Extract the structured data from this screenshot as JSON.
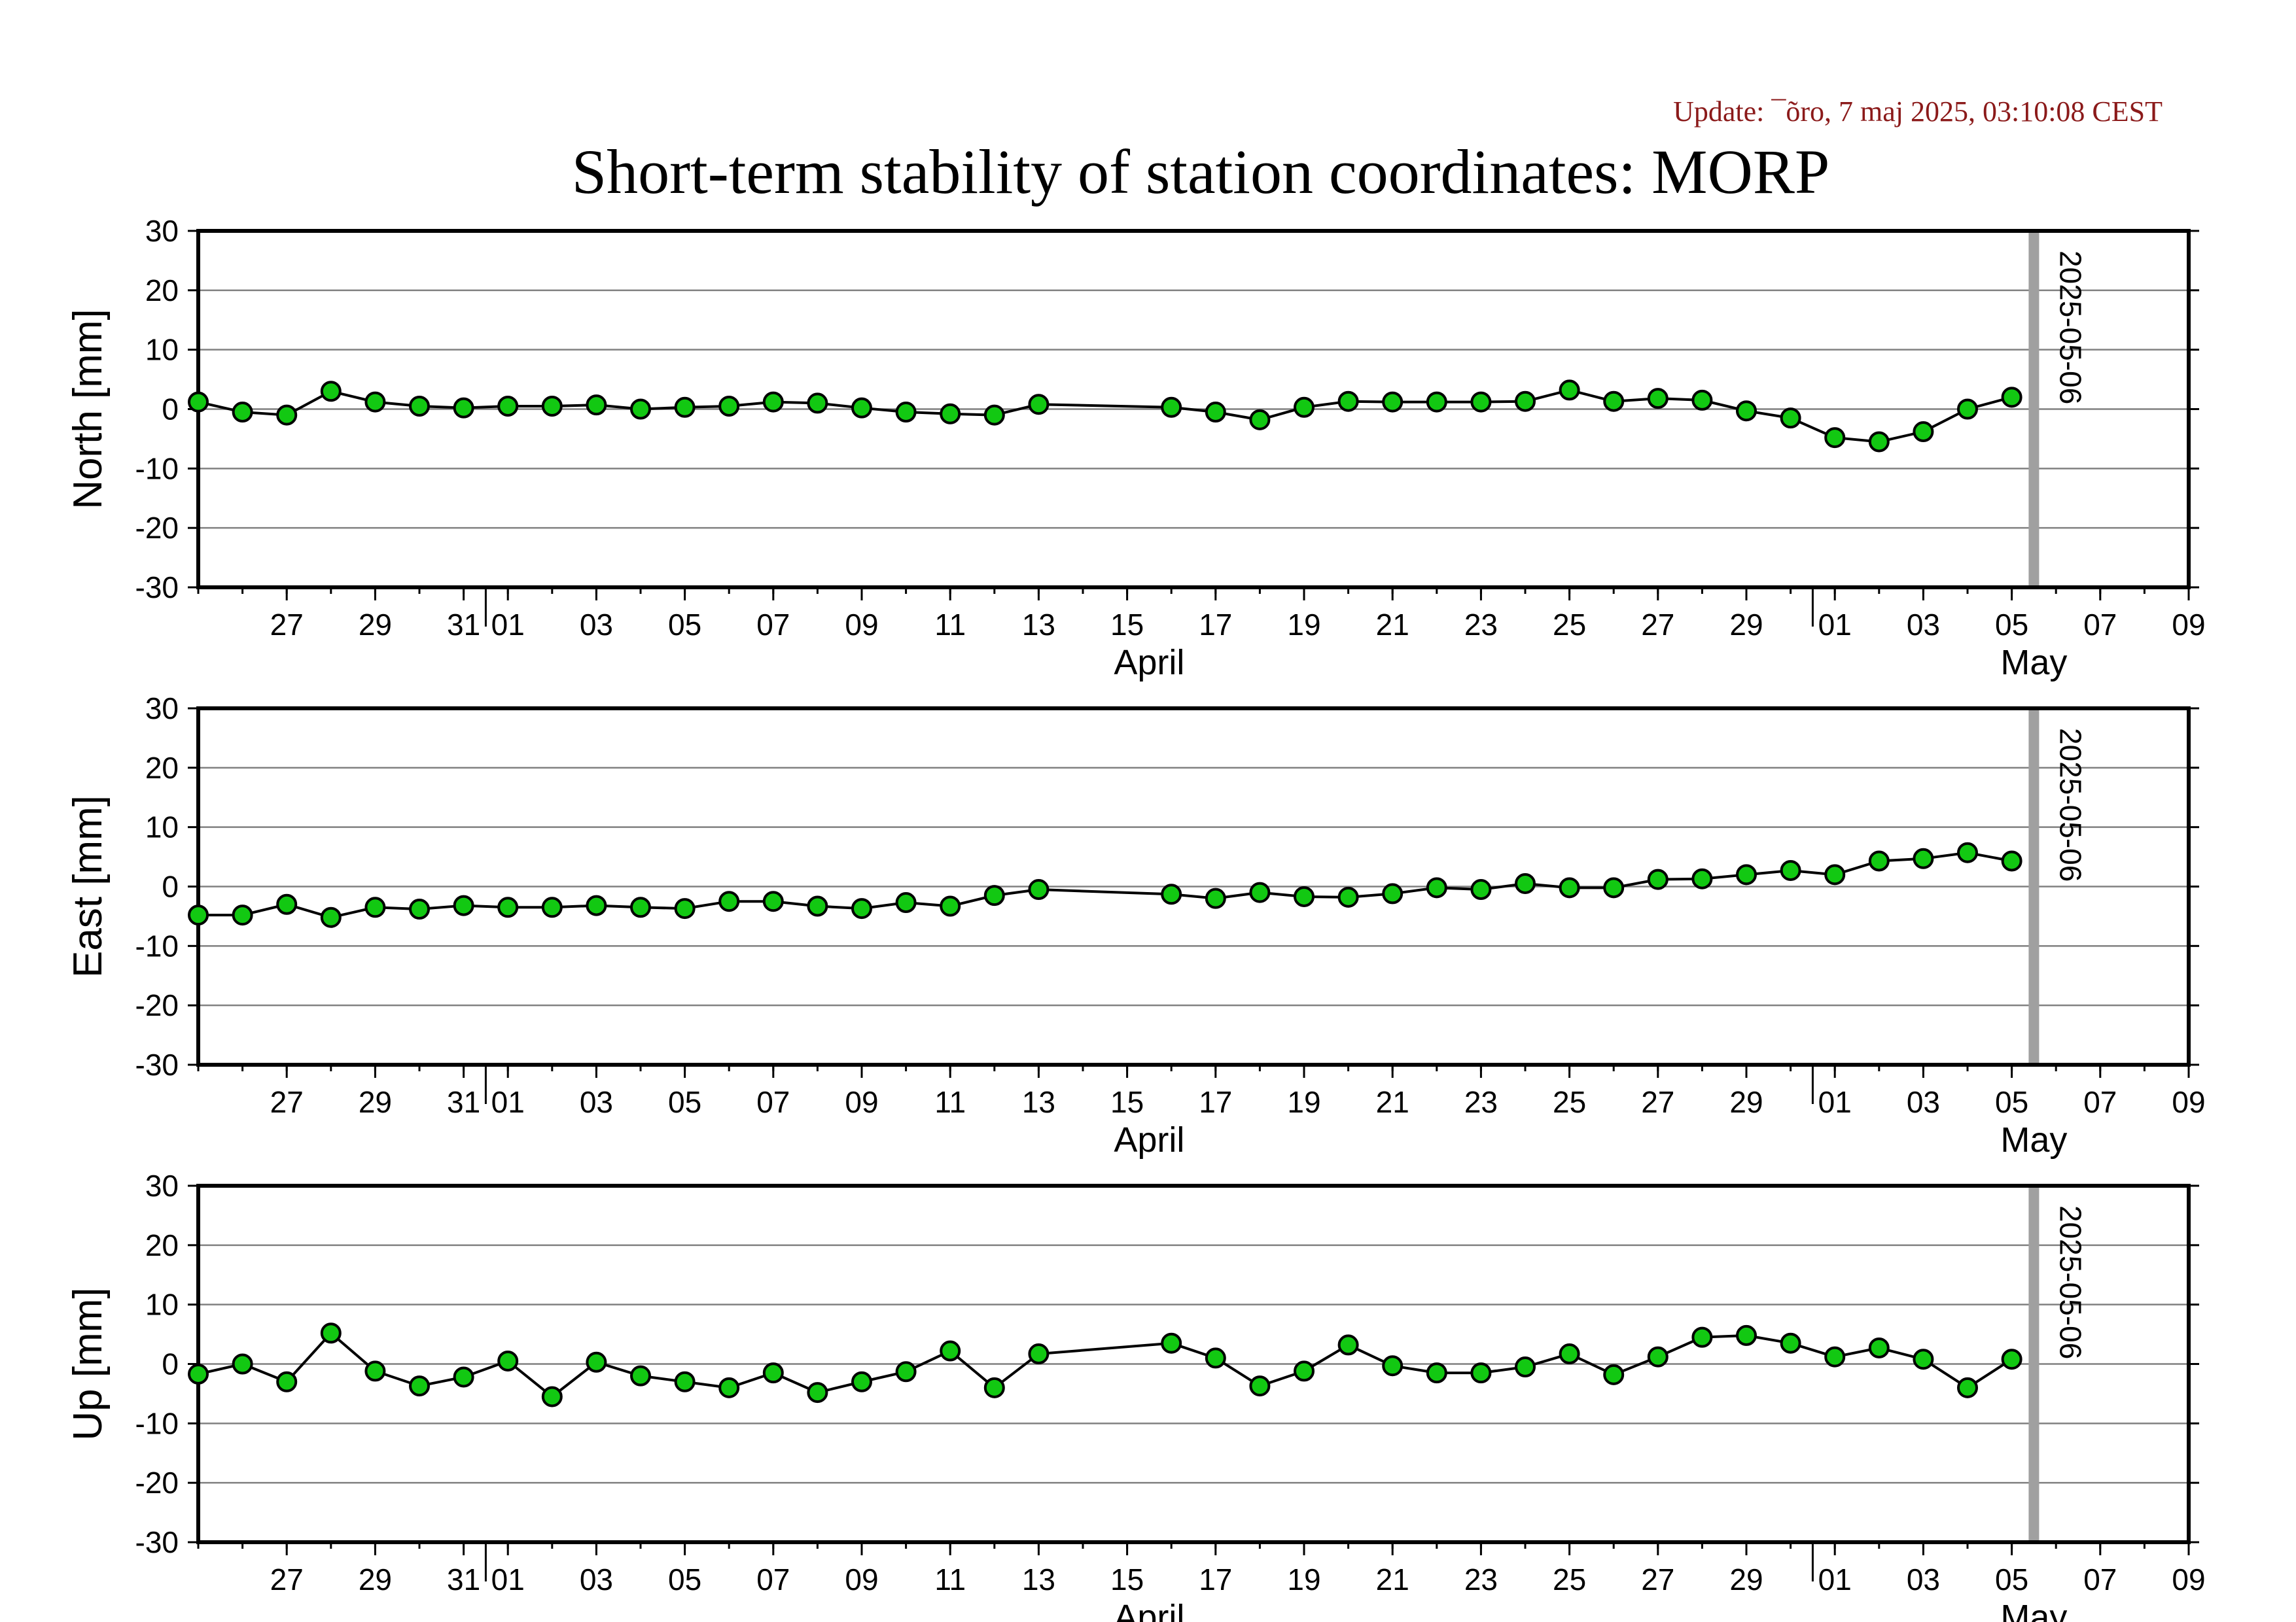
{
  "update_text": "Update: ¯õro, 7 maj 2025, 03:10:08 CEST",
  "title": "Short-term stability of station coordinates: MORP",
  "colors": {
    "marker_fill": "#12c812",
    "marker_stroke": "#000000",
    "line": "#000000",
    "grid": "#808080",
    "vline": "#a0a0a0",
    "update": "#8b1a1a"
  },
  "chart_data": {
    "type": "line",
    "x_start_day": 25,
    "x_end_day": 70,
    "ylim": [
      -30,
      30
    ],
    "yticks": [
      30,
      20,
      10,
      0,
      -10,
      -20,
      -30
    ],
    "xtick_labels": [
      {
        "day": 27,
        "label": "27"
      },
      {
        "day": 29,
        "label": "29"
      },
      {
        "day": 31,
        "label": "31"
      },
      {
        "day": 32,
        "label": "01"
      },
      {
        "day": 34,
        "label": "03"
      },
      {
        "day": 36,
        "label": "05"
      },
      {
        "day": 38,
        "label": "07"
      },
      {
        "day": 40,
        "label": "09"
      },
      {
        "day": 42,
        "label": "11"
      },
      {
        "day": 44,
        "label": "13"
      },
      {
        "day": 46,
        "label": "15"
      },
      {
        "day": 48,
        "label": "17"
      },
      {
        "day": 50,
        "label": "19"
      },
      {
        "day": 52,
        "label": "21"
      },
      {
        "day": 54,
        "label": "23"
      },
      {
        "day": 56,
        "label": "25"
      },
      {
        "day": 58,
        "label": "27"
      },
      {
        "day": 60,
        "label": "29"
      },
      {
        "day": 62,
        "label": "01"
      },
      {
        "day": 64,
        "label": "03"
      },
      {
        "day": 66,
        "label": "05"
      },
      {
        "day": 68,
        "label": "07"
      },
      {
        "day": 70,
        "label": "09"
      }
    ],
    "month_labels": [
      {
        "day": 46.5,
        "label": "April"
      },
      {
        "day": 66.5,
        "label": "May"
      }
    ],
    "month_boundaries": [
      31.5,
      61.5
    ],
    "marker": {
      "day": 66.5,
      "label": "2025-05-06"
    },
    "x_days": [
      25,
      26,
      27,
      28,
      29,
      30,
      31,
      32,
      33,
      34,
      35,
      36,
      37,
      38,
      39,
      40,
      41,
      42,
      43,
      44,
      47,
      48,
      49,
      50,
      51,
      52,
      53,
      54,
      55,
      56,
      57,
      58,
      59,
      60,
      61,
      62,
      63,
      64,
      65,
      66
    ],
    "panels": [
      {
        "ylabel": "North [mm]",
        "values": [
          1.2,
          -0.5,
          -1.0,
          3.0,
          1.2,
          0.5,
          0.2,
          0.5,
          0.5,
          0.7,
          0.0,
          0.3,
          0.5,
          1.2,
          1.0,
          0.2,
          -0.5,
          -0.8,
          -1.0,
          0.8,
          0.3,
          -0.5,
          -1.8,
          0.3,
          1.3,
          1.2,
          1.2,
          1.2,
          1.3,
          3.2,
          1.3,
          1.8,
          1.5,
          -0.3,
          -1.5,
          -4.8,
          -5.5,
          -3.8,
          0.0,
          2.0
        ]
      },
      {
        "ylabel": "East [mm]",
        "values": [
          -4.8,
          -4.8,
          -3.0,
          -5.2,
          -3.5,
          -3.8,
          -3.2,
          -3.5,
          -3.5,
          -3.2,
          -3.5,
          -3.7,
          -2.5,
          -2.5,
          -3.3,
          -3.7,
          -2.7,
          -3.3,
          -1.5,
          -0.5,
          -1.3,
          -2.0,
          -1.0,
          -1.7,
          -1.8,
          -1.2,
          -0.2,
          -0.5,
          0.5,
          -0.2,
          -0.2,
          1.2,
          1.3,
          2.0,
          2.7,
          2.0,
          4.3,
          4.7,
          5.7,
          4.3
        ]
      },
      {
        "ylabel": "Up [mm]",
        "values": [
          -1.7,
          0.0,
          -3.0,
          5.2,
          -1.2,
          -3.7,
          -2.2,
          0.5,
          -5.5,
          0.3,
          -2.0,
          -3.0,
          -4.0,
          -1.5,
          -4.8,
          -3.0,
          -1.3,
          2.2,
          -4.0,
          1.7,
          3.5,
          1.0,
          -3.7,
          -1.2,
          3.2,
          -0.3,
          -1.5,
          -1.5,
          -0.5,
          1.7,
          -1.8,
          1.2,
          4.5,
          4.8,
          3.5,
          1.2,
          2.7,
          0.8,
          -4.0,
          0.8
        ]
      }
    ]
  }
}
